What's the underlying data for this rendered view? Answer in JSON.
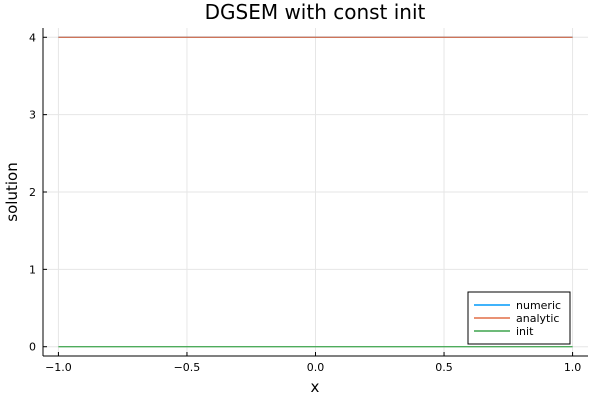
{
  "chart_data": {
    "type": "line",
    "title": "DGSEM with const init",
    "xlabel": "x",
    "ylabel": "solution",
    "xlim": [
      -1.06,
      1.06
    ],
    "ylim": [
      -0.12,
      4.12
    ],
    "xticks": [
      -1.0,
      -0.5,
      0.0,
      0.5,
      1.0
    ],
    "xtick_labels": [
      "−1.0",
      "−0.5",
      "0.0",
      "0.5",
      "1.0"
    ],
    "yticks": [
      0,
      1,
      2,
      3,
      4
    ],
    "ytick_labels": [
      "0",
      "1",
      "2",
      "3",
      "4"
    ],
    "grid": true,
    "legend_position": "bottom-right",
    "series": [
      {
        "name": "numeric",
        "color": "#009AFA",
        "x": [
          -1.0,
          1.0
        ],
        "y": [
          4.0,
          4.0
        ]
      },
      {
        "name": "analytic",
        "color": "#E26F46",
        "x": [
          -1.0,
          1.0
        ],
        "y": [
          4.0,
          4.0
        ]
      },
      {
        "name": "init",
        "color": "#3DA44D",
        "x": [
          -1.0,
          1.0
        ],
        "y": [
          0.0,
          0.0
        ]
      }
    ]
  }
}
